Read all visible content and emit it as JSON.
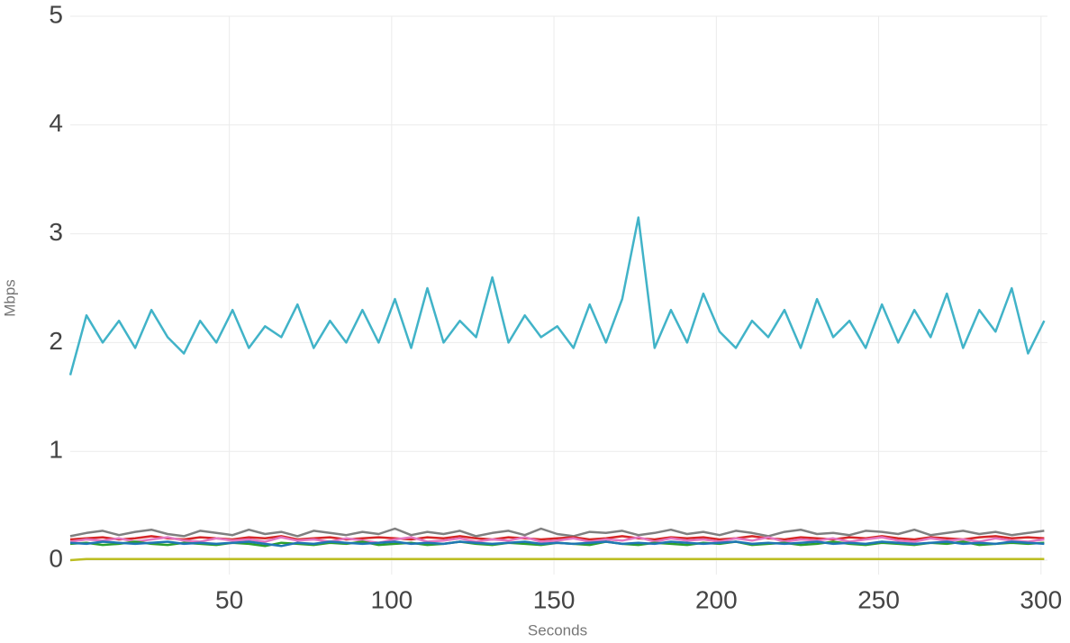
{
  "chart_data": {
    "type": "line",
    "x_label": "Seconds",
    "y_label": "Mbps",
    "x": [
      1,
      6,
      11,
      16,
      21,
      26,
      31,
      36,
      41,
      46,
      51,
      56,
      61,
      66,
      71,
      76,
      81,
      86,
      91,
      96,
      101,
      106,
      111,
      116,
      121,
      126,
      131,
      136,
      141,
      146,
      151,
      156,
      161,
      166,
      171,
      176,
      181,
      186,
      191,
      196,
      201,
      206,
      211,
      216,
      221,
      226,
      231,
      236,
      241,
      246,
      251,
      256,
      261,
      266,
      271,
      276,
      281,
      286,
      291,
      296,
      301
    ],
    "series": [
      {
        "color": "#7f7f7f",
        "values": [
          0.22,
          0.25,
          0.27,
          0.23,
          0.26,
          0.28,
          0.24,
          0.22,
          0.27,
          0.25,
          0.23,
          0.28,
          0.24,
          0.26,
          0.22,
          0.27,
          0.25,
          0.23,
          0.26,
          0.24,
          0.29,
          0.23,
          0.26,
          0.24,
          0.27,
          0.22,
          0.25,
          0.27,
          0.23,
          0.29,
          0.24,
          0.22,
          0.26,
          0.25,
          0.27,
          0.23,
          0.25,
          0.28,
          0.24,
          0.26,
          0.23,
          0.27,
          0.25,
          0.22,
          0.26,
          0.28,
          0.24,
          0.25,
          0.23,
          0.27,
          0.26,
          0.24,
          0.28,
          0.23,
          0.25,
          0.27,
          0.24,
          0.26,
          0.23,
          0.25,
          0.27
        ]
      },
      {
        "color": "#d62728",
        "values": [
          0.19,
          0.2,
          0.21,
          0.19,
          0.2,
          0.22,
          0.2,
          0.19,
          0.21,
          0.2,
          0.19,
          0.21,
          0.2,
          0.22,
          0.19,
          0.2,
          0.21,
          0.19,
          0.2,
          0.21,
          0.2,
          0.19,
          0.21,
          0.2,
          0.22,
          0.2,
          0.19,
          0.21,
          0.2,
          0.19,
          0.2,
          0.21,
          0.19,
          0.2,
          0.22,
          0.2,
          0.19,
          0.21,
          0.2,
          0.21,
          0.19,
          0.2,
          0.22,
          0.2,
          0.19,
          0.21,
          0.2,
          0.19,
          0.21,
          0.2,
          0.22,
          0.2,
          0.19,
          0.21,
          0.2,
          0.19,
          0.21,
          0.22,
          0.2,
          0.21,
          0.2
        ]
      },
      {
        "color": "#e377c2",
        "values": [
          0.17,
          0.19,
          0.18,
          0.2,
          0.17,
          0.19,
          0.21,
          0.18,
          0.17,
          0.2,
          0.18,
          0.19,
          0.17,
          0.21,
          0.18,
          0.19,
          0.17,
          0.2,
          0.18,
          0.16,
          0.19,
          0.21,
          0.17,
          0.18,
          0.2,
          0.17,
          0.19,
          0.18,
          0.21,
          0.17,
          0.18,
          0.2,
          0.17,
          0.19,
          0.18,
          0.21,
          0.17,
          0.2,
          0.18,
          0.19,
          0.17,
          0.2,
          0.18,
          0.21,
          0.17,
          0.19,
          0.18,
          0.2,
          0.17,
          0.19,
          0.21,
          0.18,
          0.17,
          0.2,
          0.18,
          0.19,
          0.17,
          0.2,
          0.18,
          0.17,
          0.19
        ]
      },
      {
        "color": "#2ca02c",
        "values": [
          0.15,
          0.16,
          0.14,
          0.15,
          0.17,
          0.15,
          0.14,
          0.16,
          0.15,
          0.14,
          0.16,
          0.15,
          0.13,
          0.16,
          0.15,
          0.14,
          0.16,
          0.15,
          0.17,
          0.14,
          0.15,
          0.16,
          0.14,
          0.15,
          0.17,
          0.15,
          0.14,
          0.16,
          0.15,
          0.14,
          0.16,
          0.15,
          0.14,
          0.17,
          0.15,
          0.14,
          0.16,
          0.15,
          0.14,
          0.16,
          0.15,
          0.17,
          0.14,
          0.15,
          0.16,
          0.14,
          0.15,
          0.17,
          0.15,
          0.14,
          0.16,
          0.15,
          0.14,
          0.16,
          0.15,
          0.17,
          0.14,
          0.15,
          0.16,
          0.15,
          0.16
        ]
      },
      {
        "color": "#1f77b4",
        "values": [
          0.16,
          0.15,
          0.17,
          0.16,
          0.15,
          0.16,
          0.17,
          0.15,
          0.16,
          0.15,
          0.16,
          0.17,
          0.15,
          0.13,
          0.16,
          0.15,
          0.17,
          0.16,
          0.15,
          0.16,
          0.17,
          0.15,
          0.16,
          0.15,
          0.17,
          0.16,
          0.15,
          0.16,
          0.17,
          0.15,
          0.16,
          0.15,
          0.16,
          0.17,
          0.15,
          0.16,
          0.15,
          0.17,
          0.16,
          0.15,
          0.16,
          0.17,
          0.15,
          0.16,
          0.15,
          0.16,
          0.17,
          0.15,
          0.16,
          0.15,
          0.17,
          0.16,
          0.15,
          0.16,
          0.17,
          0.15,
          0.16,
          0.15,
          0.17,
          0.16,
          0.15
        ]
      },
      {
        "color": "#bcbd22",
        "values": [
          0.0,
          0.01,
          0.01,
          0.01,
          0.01,
          0.01,
          0.01,
          0.01,
          0.01,
          0.01,
          0.01,
          0.01,
          0.01,
          0.01,
          0.01,
          0.01,
          0.01,
          0.01,
          0.01,
          0.01,
          0.01,
          0.01,
          0.01,
          0.01,
          0.01,
          0.01,
          0.01,
          0.01,
          0.01,
          0.01,
          0.01,
          0.01,
          0.01,
          0.01,
          0.01,
          0.01,
          0.01,
          0.01,
          0.01,
          0.01,
          0.01,
          0.01,
          0.01,
          0.01,
          0.01,
          0.01,
          0.01,
          0.01,
          0.01,
          0.01,
          0.01,
          0.01,
          0.01,
          0.01,
          0.01,
          0.01,
          0.01,
          0.01,
          0.01,
          0.01,
          0.01
        ]
      },
      {
        "color": "#41b3c8",
        "values": [
          1.7,
          2.25,
          2.0,
          2.2,
          1.95,
          2.3,
          2.05,
          1.9,
          2.2,
          2.0,
          2.3,
          1.95,
          2.15,
          2.05,
          2.35,
          1.95,
          2.2,
          2.0,
          2.3,
          2.0,
          2.4,
          1.95,
          2.5,
          2.0,
          2.2,
          2.05,
          2.6,
          2.0,
          2.25,
          2.05,
          2.15,
          1.95,
          2.35,
          2.0,
          2.4,
          3.15,
          1.95,
          2.3,
          2.0,
          2.45,
          2.1,
          1.95,
          2.2,
          2.05,
          2.3,
          1.95,
          2.4,
          2.05,
          2.2,
          1.95,
          2.35,
          2.0,
          2.3,
          2.05,
          2.45,
          1.95,
          2.3,
          2.1,
          2.5,
          1.9,
          2.2
        ]
      }
    ],
    "xlim": [
      1,
      302
    ],
    "ylim": [
      0,
      5
    ],
    "xticks": [
      50,
      100,
      150,
      200,
      250,
      300
    ],
    "yticks": [
      0,
      1,
      2,
      3,
      4,
      5
    ],
    "grid": true
  }
}
